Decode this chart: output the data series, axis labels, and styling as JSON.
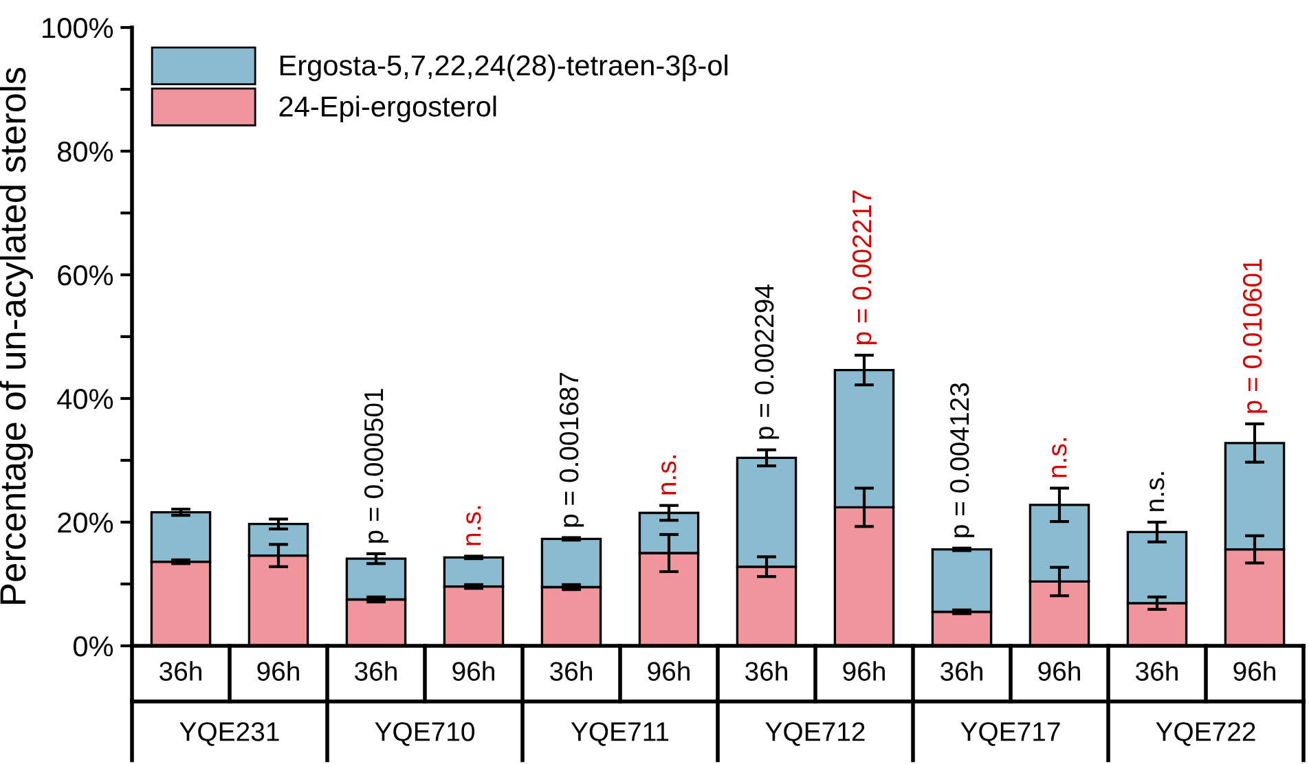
{
  "chart_data": {
    "type": "bar",
    "stacked": true,
    "ylabel": "Percentage of un-acylated sterols",
    "categories": [
      "36h",
      "96h",
      "36h",
      "96h",
      "36h",
      "96h",
      "36h",
      "96h",
      "36h",
      "96h",
      "36h",
      "96h"
    ],
    "series": [
      {
        "name": "24-Epi-ergosterol",
        "color": "#f0959c",
        "values": [
          13.6,
          14.6,
          7.5,
          9.6,
          9.5,
          15.0,
          12.8,
          22.4,
          5.5,
          10.4,
          6.9,
          15.6
        ],
        "errors": [
          0.3,
          1.8,
          0.4,
          0.3,
          0.4,
          3.0,
          1.6,
          3.1,
          0.3,
          2.3,
          1.0,
          2.2
        ]
      },
      {
        "name": "Ergosta-5,7,22,24(28)-tetraen-3β-ol",
        "color": "#8bbbd1",
        "values": [
          8.0,
          5.1,
          6.6,
          4.7,
          7.8,
          6.5,
          17.6,
          22.2,
          10.1,
          12.4,
          11.5,
          17.2
        ],
        "errors": [
          0.5,
          0.8,
          0.8,
          0.2,
          0.2,
          1.2,
          1.3,
          2.4,
          0.2,
          2.7,
          1.6,
          3.1
        ]
      }
    ],
    "ylim": [
      0,
      100
    ],
    "yticks": [
      {
        "value": 0,
        "label": "0%"
      },
      {
        "value": 10,
        "label": null
      },
      {
        "value": 20,
        "label": "20%"
      },
      {
        "value": 30,
        "label": null
      },
      {
        "value": 40,
        "label": "40%"
      },
      {
        "value": 50,
        "label": null
      },
      {
        "value": 60,
        "label": "60%"
      },
      {
        "value": 70,
        "label": null
      },
      {
        "value": 80,
        "label": "80%"
      },
      {
        "value": 90,
        "label": null
      },
      {
        "value": 100,
        "label": "100%"
      }
    ],
    "legend": "top left",
    "grid": false,
    "annotations": [
      "p = 0.000501",
      "n.s.",
      "p = 0.001687",
      "n.s.",
      "p = 0.002294",
      "p = 0.002217",
      "p = 0.004123",
      "n.s.",
      "n.s.",
      "p = 0.010601",
      "YQE231",
      "YQE710",
      "YQE711",
      "YQE712",
      "YQE717",
      "YQE722"
    ]
  }
}
